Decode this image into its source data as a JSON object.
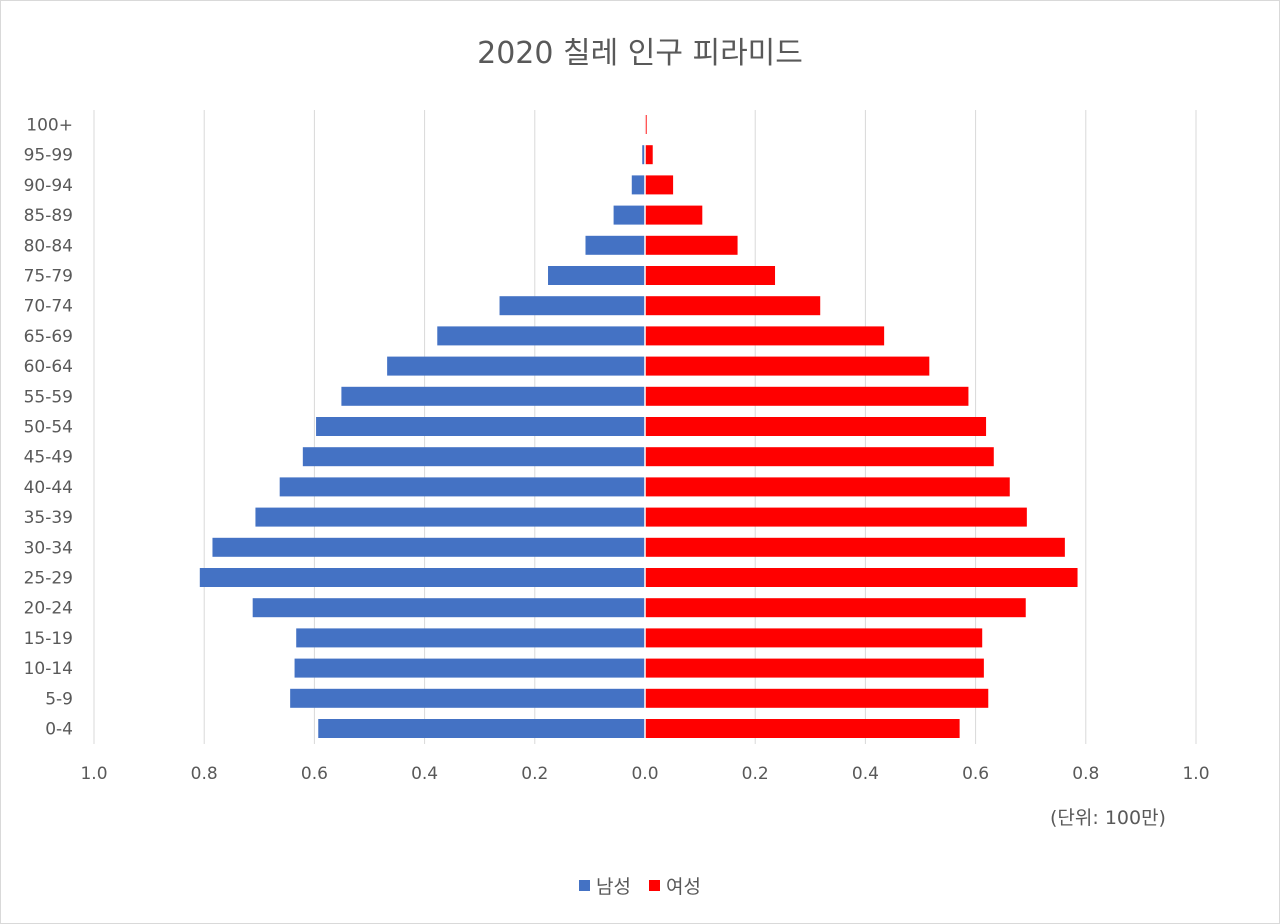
{
  "chart_data": {
    "type": "bar",
    "orientation": "horizontal",
    "layout": "population-pyramid",
    "title": "2020 칠레 인구 피라미드",
    "unit_note": "(단위: 100만)",
    "categories": [
      "100+",
      "95-99",
      "90-94",
      "85-89",
      "80-84",
      "75-79",
      "70-74",
      "65-69",
      "60-64",
      "55-59",
      "50-54",
      "45-49",
      "40-44",
      "35-39",
      "30-34",
      "25-29",
      "20-24",
      "15-19",
      "10-14",
      "5-9",
      "0-4"
    ],
    "series": [
      {
        "name": "남성",
        "color": "#4472C4",
        "side": "left",
        "values": [
          0.001,
          0.005,
          0.024,
          0.057,
          0.108,
          0.176,
          0.264,
          0.377,
          0.468,
          0.551,
          0.597,
          0.621,
          0.663,
          0.707,
          0.785,
          0.808,
          0.712,
          0.633,
          0.636,
          0.644,
          0.593
        ]
      },
      {
        "name": "여성",
        "color": "#FF0000",
        "side": "right",
        "values": [
          0.003,
          0.014,
          0.051,
          0.104,
          0.168,
          0.236,
          0.318,
          0.434,
          0.516,
          0.587,
          0.619,
          0.633,
          0.662,
          0.693,
          0.762,
          0.785,
          0.691,
          0.612,
          0.615,
          0.623,
          0.571
        ]
      }
    ],
    "x_ticks": [
      "1.0",
      "0.8",
      "0.6",
      "0.4",
      "0.2",
      "0.0",
      "0.2",
      "0.4",
      "0.6",
      "0.8",
      "1.0"
    ],
    "xlim": [
      -1.0,
      1.0
    ],
    "grid": true,
    "legend": "bottom-center"
  }
}
